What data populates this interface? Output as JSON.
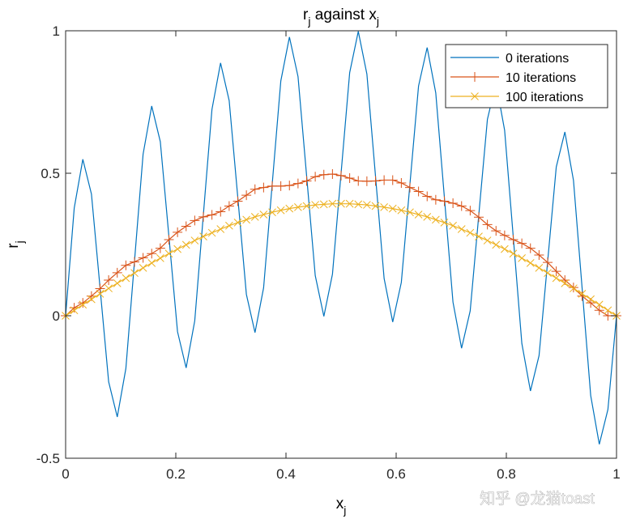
{
  "chart_data": {
    "type": "line",
    "title": [
      {
        "t": "r"
      },
      {
        "t": "j",
        "sub": true
      },
      {
        "t": " against x"
      },
      {
        "t": "j",
        "sub": true
      }
    ],
    "xlabel": [
      {
        "t": "x"
      },
      {
        "t": "j",
        "sub": true
      }
    ],
    "ylabel": [
      {
        "t": "r"
      },
      {
        "t": "j",
        "sub": true
      }
    ],
    "xlim": [
      0,
      1
    ],
    "ylim": [
      -0.5,
      1
    ],
    "xticks": [
      0,
      0.2,
      0.4,
      0.6,
      0.8,
      1
    ],
    "xtick_labels": [
      "0",
      "0.2",
      "0.4",
      "0.6",
      "0.8",
      "1"
    ],
    "yticks": [
      -0.5,
      0,
      0.5,
      1
    ],
    "ytick_labels": [
      "-0.5",
      "0",
      "0.5",
      "1"
    ],
    "grid": false,
    "box": true,
    "legend_position": "top-right",
    "x_step": 0.015625,
    "series": [
      {
        "name": "0 iterations",
        "color": "#0072BD",
        "marker": "none",
        "values": [
          0,
          0.378,
          0.549,
          0.427,
          0.098,
          -0.232,
          -0.355,
          -0.185,
          0.191,
          0.567,
          0.736,
          0.611,
          0.278,
          -0.056,
          -0.183,
          -0.018,
          0.354,
          0.724,
          0.887,
          0.755,
          0.416,
          0.075,
          -0.059,
          0.098,
          0.462,
          0.824,
          0.978,
          0.839,
          0.49,
          0.141,
          -0.002,
          0.146,
          0.5,
          0.853,
          0.998,
          0.848,
          0.49,
          0.131,
          -0.022,
          0.117,
          0.462,
          0.806,
          0.941,
          0.782,
          0.416,
          0.048,
          -0.114,
          0.017,
          0.354,
          0.689,
          0.817,
          0.651,
          0.278,
          -0.097,
          -0.264,
          -0.14,
          0.191,
          0.522,
          0.645,
          0.475,
          0.098,
          -0.28,
          -0.451,
          -0.329,
          0
        ]
      },
      {
        "name": "10 iterations",
        "color": "#D95319",
        "marker": "+",
        "values": [
          0,
          0.028,
          0.045,
          0.069,
          0.095,
          0.125,
          0.151,
          0.177,
          0.189,
          0.203,
          0.218,
          0.237,
          0.267,
          0.293,
          0.314,
          0.334,
          0.347,
          0.354,
          0.365,
          0.385,
          0.402,
          0.423,
          0.444,
          0.45,
          0.455,
          0.455,
          0.457,
          0.464,
          0.473,
          0.488,
          0.495,
          0.497,
          0.492,
          0.483,
          0.473,
          0.472,
          0.473,
          0.476,
          0.476,
          0.466,
          0.45,
          0.436,
          0.419,
          0.407,
          0.402,
          0.395,
          0.385,
          0.369,
          0.346,
          0.32,
          0.298,
          0.282,
          0.267,
          0.254,
          0.237,
          0.213,
          0.187,
          0.156,
          0.125,
          0.099,
          0.069,
          0.045,
          0.019,
          0,
          0
        ]
      },
      {
        "name": "100 iterations",
        "color": "#EDB120",
        "marker": "x",
        "values": [
          0,
          0.019,
          0.039,
          0.058,
          0.077,
          0.096,
          0.114,
          0.132,
          0.15,
          0.168,
          0.185,
          0.202,
          0.218,
          0.234,
          0.249,
          0.264,
          0.278,
          0.291,
          0.304,
          0.316,
          0.327,
          0.337,
          0.347,
          0.355,
          0.363,
          0.37,
          0.376,
          0.381,
          0.385,
          0.389,
          0.391,
          0.393,
          0.393,
          0.393,
          0.391,
          0.389,
          0.385,
          0.381,
          0.376,
          0.37,
          0.363,
          0.355,
          0.347,
          0.337,
          0.327,
          0.316,
          0.304,
          0.291,
          0.278,
          0.264,
          0.249,
          0.234,
          0.218,
          0.202,
          0.185,
          0.168,
          0.15,
          0.132,
          0.114,
          0.096,
          0.077,
          0.058,
          0.039,
          0.019,
          0
        ]
      }
    ]
  },
  "watermark": "知乎 @龙猫toast"
}
